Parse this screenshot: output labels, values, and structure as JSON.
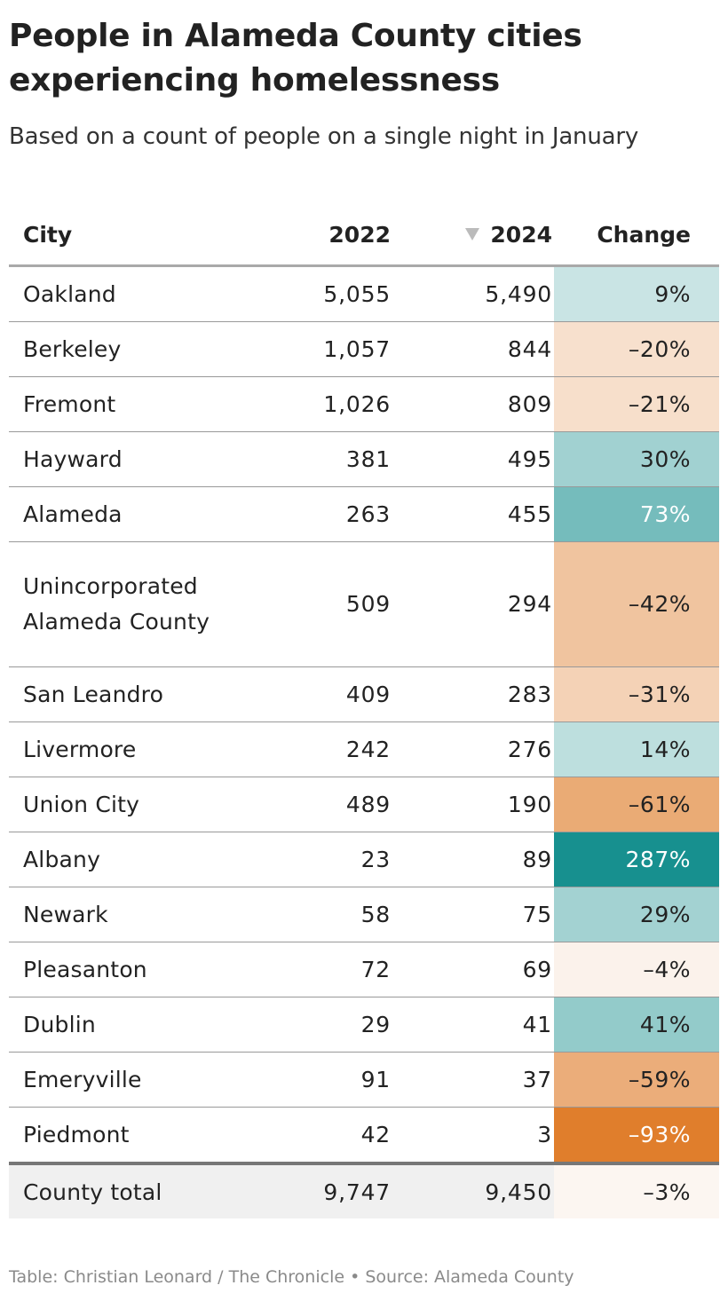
{
  "header": {
    "title": "People in Alameda County cities experiencing homelessness",
    "subtitle": "Based on a count of people on a single night in January"
  },
  "colors": {
    "positive_high": "#17908f",
    "positive_low": "#e6f2f2",
    "negative_low": "#fcf6f1",
    "negative_high": "#e07e2c",
    "total_row_bg": "#f0f0f0"
  },
  "chart_data": {
    "type": "table",
    "sort": {
      "column": "2024",
      "direction": "descending",
      "indicator": "down-triangle-icon"
    },
    "columns": [
      "City",
      "2022",
      "2024",
      "Change"
    ],
    "rows": [
      {
        "city": "Oakland",
        "y2022": "5,055",
        "y2024": "5,490",
        "change": "9%",
        "change_value": 9
      },
      {
        "city": "Berkeley",
        "y2022": "1,057",
        "y2024": "844",
        "change": "–20%",
        "change_value": -20
      },
      {
        "city": "Fremont",
        "y2022": "1,026",
        "y2024": "809",
        "change": "–21%",
        "change_value": -21
      },
      {
        "city": "Hayward",
        "y2022": "381",
        "y2024": "495",
        "change": "30%",
        "change_value": 30
      },
      {
        "city": "Alameda",
        "y2022": "263",
        "y2024": "455",
        "change": "73%",
        "change_value": 73
      },
      {
        "city": "Unincorporated Alameda County",
        "y2022": "509",
        "y2024": "294",
        "change": "–42%",
        "change_value": -42
      },
      {
        "city": "San Leandro",
        "y2022": "409",
        "y2024": "283",
        "change": "–31%",
        "change_value": -31
      },
      {
        "city": "Livermore",
        "y2022": "242",
        "y2024": "276",
        "change": "14%",
        "change_value": 14
      },
      {
        "city": "Union City",
        "y2022": "489",
        "y2024": "190",
        "change": "–61%",
        "change_value": -61
      },
      {
        "city": "Albany",
        "y2022": "23",
        "y2024": "89",
        "change": "287%",
        "change_value": 287
      },
      {
        "city": "Newark",
        "y2022": "58",
        "y2024": "75",
        "change": "29%",
        "change_value": 29
      },
      {
        "city": "Pleasanton",
        "y2022": "72",
        "y2024": "69",
        "change": "–4%",
        "change_value": -4
      },
      {
        "city": "Dublin",
        "y2022": "29",
        "y2024": "41",
        "change": "41%",
        "change_value": 41
      },
      {
        "city": "Emeryville",
        "y2022": "91",
        "y2024": "37",
        "change": "–59%",
        "change_value": -59
      },
      {
        "city": "Piedmont",
        "y2022": "42",
        "y2024": "3",
        "change": "–93%",
        "change_value": -93
      }
    ],
    "total": {
      "city": "County total",
      "y2022": "9,747",
      "y2024": "9,450",
      "change": "–3%",
      "change_value": -3
    }
  },
  "footer": {
    "credit": "Table: Christian Leonard / The Chronicle • Source: Alameda County"
  }
}
